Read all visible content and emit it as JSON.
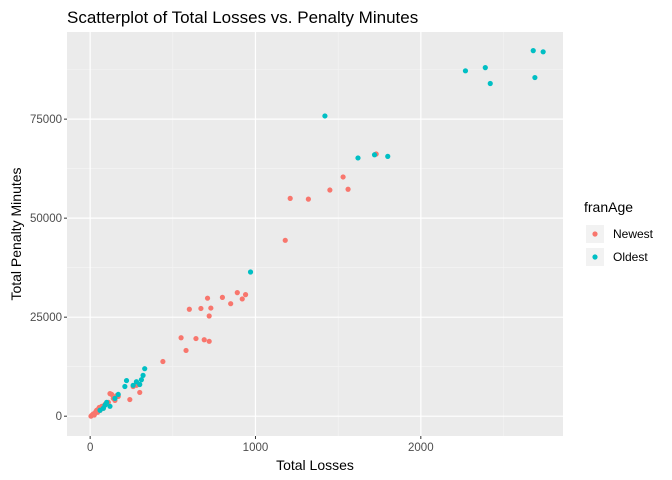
{
  "chart_data": {
    "type": "scatter",
    "title": "Scatterplot of Total Losses vs. Penalty Minutes",
    "xlabel": "Total Losses",
    "ylabel": "Total Penalty Minutes",
    "xlim": [
      -140,
      2860
    ],
    "ylim": [
      -5000,
      97000
    ],
    "x_ticks": [
      0,
      1000,
      2000
    ],
    "x_tick_labels": [
      "0",
      "1000",
      "2000"
    ],
    "y_ticks": [
      0,
      25000,
      50000,
      75000
    ],
    "y_tick_labels": [
      "0",
      "25000",
      "50000",
      "75000"
    ],
    "grid": true,
    "legend": {
      "title": "franAge",
      "placement": "right"
    },
    "series": [
      {
        "name": "Newest",
        "color": "#F8766D",
        "points": [
          [
            5,
            0
          ],
          [
            10,
            200
          ],
          [
            15,
            400
          ],
          [
            20,
            600
          ],
          [
            25,
            300
          ],
          [
            30,
            800
          ],
          [
            35,
            1200
          ],
          [
            40,
            1500
          ],
          [
            45,
            1000
          ],
          [
            50,
            1800
          ],
          [
            55,
            2200
          ],
          [
            60,
            1500
          ],
          [
            70,
            2500
          ],
          [
            80,
            2000
          ],
          [
            90,
            3000
          ],
          [
            100,
            3200
          ],
          [
            110,
            3500
          ],
          [
            120,
            5700
          ],
          [
            130,
            5500
          ],
          [
            140,
            4500
          ],
          [
            150,
            4000
          ],
          [
            160,
            5200
          ],
          [
            170,
            5000
          ],
          [
            240,
            4200
          ],
          [
            260,
            7500
          ],
          [
            280,
            7800
          ],
          [
            300,
            6000
          ],
          [
            440,
            13800
          ],
          [
            550,
            19800
          ],
          [
            580,
            16600
          ],
          [
            600,
            27000
          ],
          [
            640,
            19600
          ],
          [
            670,
            27200
          ],
          [
            690,
            19300
          ],
          [
            710,
            29800
          ],
          [
            720,
            18900
          ],
          [
            730,
            27300
          ],
          [
            720,
            25300
          ],
          [
            800,
            30000
          ],
          [
            850,
            28400
          ],
          [
            890,
            31200
          ],
          [
            920,
            29600
          ],
          [
            940,
            30700
          ],
          [
            1180,
            44400
          ],
          [
            1210,
            55000
          ],
          [
            1320,
            54800
          ],
          [
            1450,
            57100
          ],
          [
            1530,
            60400
          ],
          [
            1560,
            57300
          ],
          [
            1730,
            66200
          ]
        ]
      },
      {
        "name": "Oldest",
        "color": "#00BFC4",
        "points": [
          [
            60,
            1500
          ],
          [
            80,
            2000
          ],
          [
            90,
            2800
          ],
          [
            100,
            3500
          ],
          [
            120,
            2500
          ],
          [
            150,
            4500
          ],
          [
            170,
            5500
          ],
          [
            210,
            7500
          ],
          [
            220,
            9000
          ],
          [
            260,
            7800
          ],
          [
            280,
            8700
          ],
          [
            300,
            8000
          ],
          [
            310,
            9200
          ],
          [
            320,
            10300
          ],
          [
            330,
            12000
          ],
          [
            970,
            36400
          ],
          [
            1420,
            75800
          ],
          [
            1620,
            65200
          ],
          [
            1720,
            66000
          ],
          [
            1800,
            65600
          ],
          [
            2270,
            87200
          ],
          [
            2390,
            88000
          ],
          [
            2420,
            84000
          ],
          [
            2680,
            92300
          ],
          [
            2690,
            85500
          ],
          [
            2740,
            92000
          ]
        ]
      }
    ]
  }
}
